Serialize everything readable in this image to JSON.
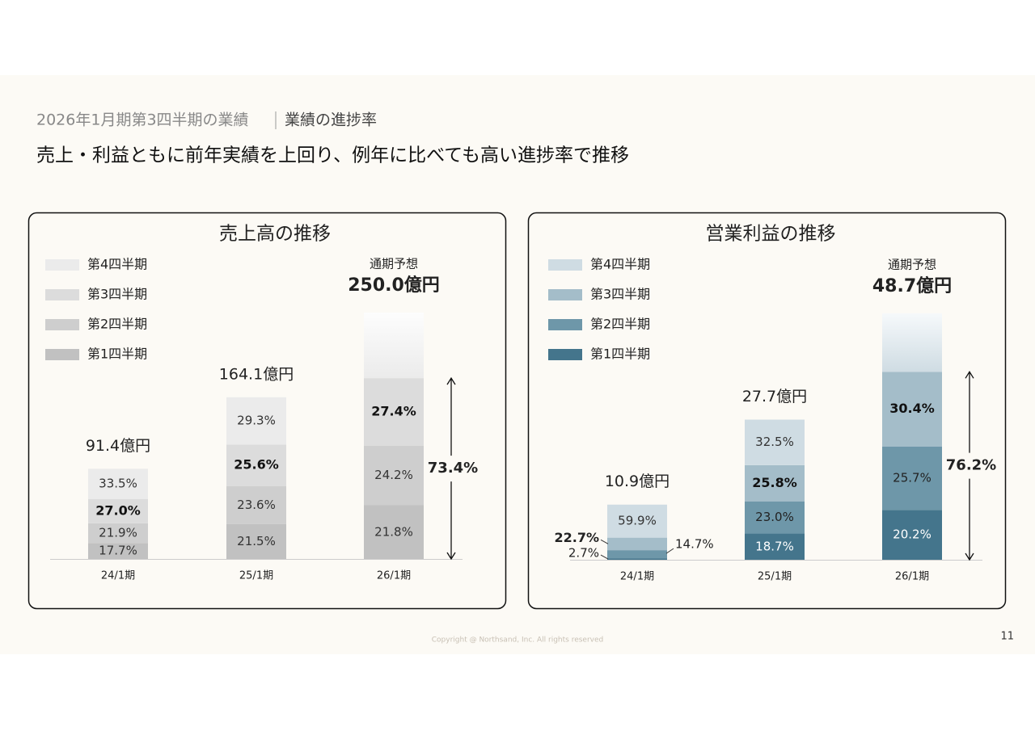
{
  "header": {
    "section": "2026年1月期第3四半期の業績",
    "topic": "業績の進捗率"
  },
  "title": "売上・利益ともに前年実績を上回り、例年に比べても高い進捗率で推移",
  "chart_data": [
    {
      "type": "stacked_bar",
      "title": "売上高の推移",
      "categories": [
        "24/1期",
        "25/1期",
        "26/1期"
      ],
      "series": [
        {
          "name": "第1四半期",
          "color": "#c1c1c1",
          "label_color": "#333333",
          "values": [
            17.7,
            21.5,
            21.8
          ],
          "value_labels": [
            "17.7%",
            "21.5%",
            "21.8%"
          ]
        },
        {
          "name": "第2四半期",
          "color": "#cecece",
          "label_color": "#333333",
          "values": [
            21.9,
            23.6,
            24.2
          ],
          "value_labels": [
            "21.9%",
            "23.6%",
            "24.2%"
          ]
        },
        {
          "name": "第3四半期",
          "color": "#dcdcdc",
          "label_color": "#111111",
          "values": [
            27,
            25.6,
            27.4
          ],
          "value_labels": [
            "27.0%",
            "25.6%",
            "27.4%"
          ]
        },
        {
          "name": "第4四半期",
          "color": "#ebebeb",
          "label_color": "#333333",
          "values": [
            33.5,
            29.3,
            null
          ],
          "value_labels": [
            "33.5%",
            "29.3%",
            null
          ]
        }
      ],
      "totals": {
        "values": [
          91.4,
          164.1,
          250
        ],
        "value_labels": [
          "91.4億円",
          "164.1億円",
          "250.0億円"
        ]
      },
      "forecast_label": "通期予想",
      "progress": 73.4,
      "progress_label": "73.4%",
      "bold_series": 2
    },
    {
      "type": "stacked_bar",
      "title": "営業利益の推移",
      "categories": [
        "24/1期",
        "25/1期",
        "26/1期"
      ],
      "series": [
        {
          "name": "第1四半期",
          "color": "#44758c",
          "label_color": "#ffffff",
          "values": [
            2.7,
            18.7,
            20.2
          ],
          "value_labels": [
            "2.7%",
            "18.7%",
            "20.2%"
          ]
        },
        {
          "name": "第2四半期",
          "color": "#6e97a9",
          "label_color": "#222222",
          "values": [
            14.7,
            23,
            25.7
          ],
          "value_labels": [
            "14.7%",
            "23.0%",
            "25.7%"
          ]
        },
        {
          "name": "第3四半期",
          "color": "#a4bdc9",
          "label_color": "#111111",
          "values": [
            22.7,
            25.8,
            30.4
          ],
          "value_labels": [
            "22.7%",
            "25.8%",
            "30.4%"
          ]
        },
        {
          "name": "第4四半期",
          "color": "#cfdce3",
          "label_color": "#333333",
          "values": [
            59.9,
            32.5,
            null
          ],
          "value_labels": [
            "59.9%",
            "32.5%",
            null
          ]
        }
      ],
      "totals": {
        "values": [
          10.9,
          27.7,
          48.7
        ],
        "value_labels": [
          "10.9億円",
          "27.7億円",
          "48.7億円"
        ]
      },
      "forecast_label": "通期予想",
      "progress": 76.2,
      "progress_label": "76.2%",
      "bold_series": 2
    }
  ],
  "footer": {
    "copyright": "Copyright @ Northsand, Inc. All rights reserved",
    "page": 11
  }
}
